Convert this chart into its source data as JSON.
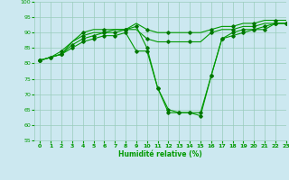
{
  "xlabel": "Humidité relative (%)",
  "background_color": "#cce8f0",
  "grid_color": "#99ccbb",
  "line_color": "#009900",
  "marker_color": "#007700",
  "ylim": [
    55,
    100
  ],
  "xlim": [
    -0.5,
    23
  ],
  "yticks": [
    55,
    60,
    65,
    70,
    75,
    80,
    85,
    90,
    95,
    100
  ],
  "xticks": [
    0,
    1,
    2,
    3,
    4,
    5,
    6,
    7,
    8,
    9,
    10,
    11,
    12,
    13,
    14,
    15,
    16,
    17,
    18,
    19,
    20,
    21,
    22,
    23
  ],
  "series": [
    {
      "y": [
        81,
        82,
        83,
        87,
        90,
        91,
        91,
        91,
        91,
        93,
        91,
        90,
        90,
        90,
        90,
        90,
        91,
        92,
        92,
        93,
        93,
        94,
        94,
        94
      ],
      "markers": false
    },
    {
      "y": [
        81,
        82,
        84,
        87,
        89,
        90,
        90,
        91,
        91,
        91,
        88,
        87,
        87,
        87,
        87,
        87,
        90,
        91,
        91,
        92,
        92,
        93,
        93,
        93
      ],
      "markers": false
    },
    {
      "y": [
        81,
        82,
        83,
        86,
        88,
        89,
        90,
        90,
        91,
        92,
        85,
        72,
        65,
        64,
        64,
        63,
        76,
        88,
        90,
        91,
        91,
        92,
        93,
        93
      ],
      "markers": true
    },
    {
      "y": [
        81,
        82,
        83,
        85,
        87,
        88,
        89,
        89,
        90,
        84,
        84,
        72,
        64,
        64,
        64,
        64,
        76,
        88,
        89,
        90,
        91,
        91,
        93,
        93
      ],
      "markers": true
    }
  ]
}
